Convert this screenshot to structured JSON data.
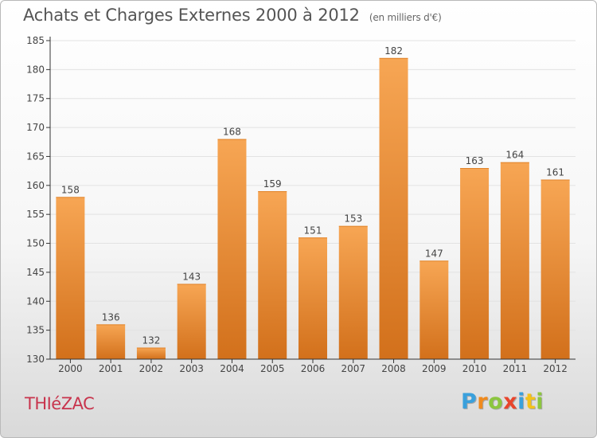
{
  "title": "Achats et Charges Externes 2000 à 2012",
  "title_unit": "(en milliers d'€)",
  "place_label": "THIéZAC",
  "logo": {
    "text": "Proxiti",
    "letter_colors": [
      "#3aa0dc",
      "#f08a1c",
      "#8cc63f",
      "#e8452c",
      "#3aa0dc",
      "#f3c21b",
      "#8cc63f"
    ]
  },
  "colors": {
    "bar_light": "#f7a654",
    "bar_dark": "#d2701b",
    "axis": "#333333",
    "grid": "#e2e2e2",
    "text": "#444444"
  },
  "chart_data": {
    "type": "bar",
    "title": "Achats et Charges Externes 2000 à 2012",
    "categories": [
      "2000",
      "2001",
      "2002",
      "2003",
      "2004",
      "2005",
      "2006",
      "2007",
      "2008",
      "2009",
      "2010",
      "2011",
      "2012"
    ],
    "values": [
      158,
      136,
      132,
      143,
      168,
      159,
      151,
      153,
      182,
      147,
      163,
      164,
      161
    ],
    "ylim": [
      130,
      185
    ],
    "yticks": [
      130,
      135,
      140,
      145,
      150,
      155,
      160,
      165,
      170,
      175,
      180,
      185
    ],
    "grid": true,
    "data_labels": true
  }
}
